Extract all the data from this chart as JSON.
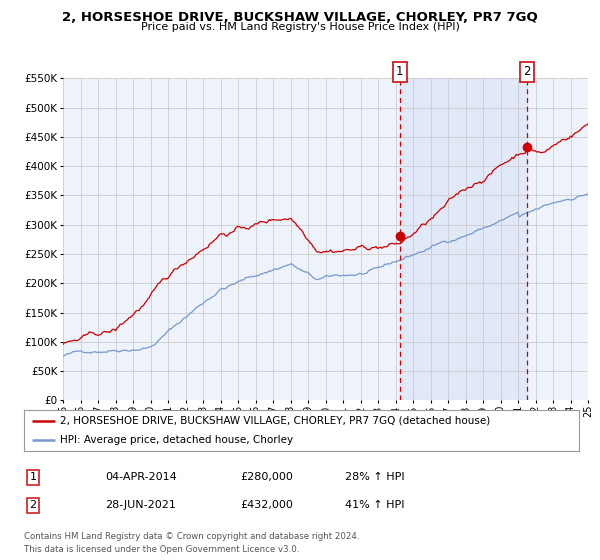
{
  "title": "2, HORSESHOE DRIVE, BUCKSHAW VILLAGE, CHORLEY, PR7 7GQ",
  "subtitle": "Price paid vs. HM Land Registry's House Price Index (HPI)",
  "legend_line1": "2, HORSESHOE DRIVE, BUCKSHAW VILLAGE, CHORLEY, PR7 7GQ (detached house)",
  "legend_line2": "HPI: Average price, detached house, Chorley",
  "sale1_date": "04-APR-2014",
  "sale1_price": "£280,000",
  "sale1_hpi": "28% ↑ HPI",
  "sale2_date": "28-JUN-2021",
  "sale2_price": "£432,000",
  "sale2_hpi": "41% ↑ HPI",
  "footnote1": "Contains HM Land Registry data © Crown copyright and database right 2024.",
  "footnote2": "This data is licensed under the Open Government Licence v3.0.",
  "red_color": "#cc0000",
  "blue_color": "#7799cc",
  "background_color": "#ffffff",
  "plot_bg_color": "#eef2fa",
  "grid_color": "#cccccc",
  "sale1_year": 2014.25,
  "sale1_value": 280000,
  "sale2_year": 2021.5,
  "sale2_value": 432000,
  "xmin": 1995,
  "xmax": 2025,
  "ymin": 0,
  "ymax": 550000
}
